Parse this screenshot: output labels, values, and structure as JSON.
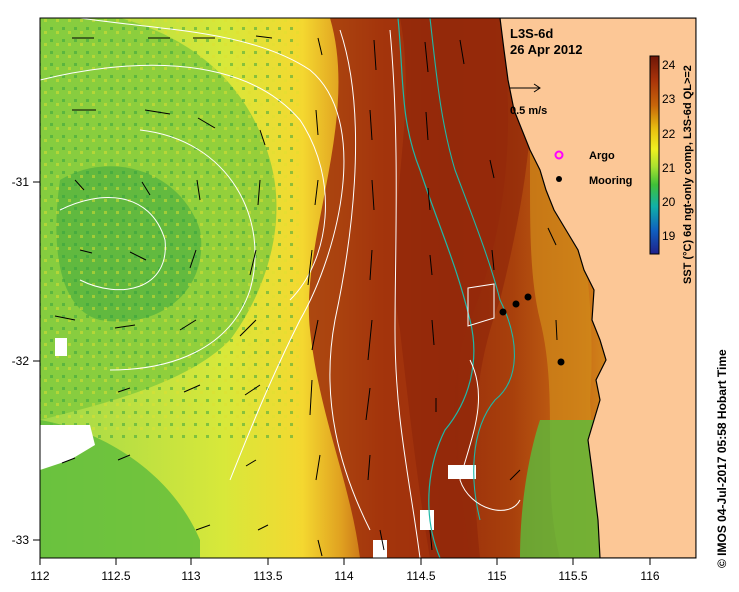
{
  "map": {
    "product": "L3S-6d",
    "date": "26 Apr 2012",
    "vector_scale_label": "0.5 m/s",
    "x_ticks": [
      "112",
      "112.5",
      "113",
      "113.5",
      "114",
      "114.5",
      "115",
      "115.5",
      "116"
    ],
    "y_ticks": [
      "-31",
      "-32",
      "-33"
    ],
    "credit": "© IMOS 04-Jul-2017 05:58 Hobart Time",
    "land_color": "#fcc796",
    "coast_color": "#000000",
    "bathy_color": "#1fb8a8",
    "contour_color": "#ffffff"
  },
  "legend": {
    "argo_label": "Argo",
    "mooring_label": "Mooring",
    "argo_color": "#ff00ff",
    "mooring_color": "#000000"
  },
  "colorbar": {
    "ticks": [
      "24",
      "23",
      "22",
      "21",
      "20",
      "19"
    ],
    "label": "SST (°C) 6d ngt-only comp, L3S-6d QL>=2",
    "colors": [
      "#7a1a0a",
      "#a8330a",
      "#c8660a",
      "#e8b010",
      "#f8f018",
      "#b8e830",
      "#40c030",
      "#10b8a0",
      "#1070c0",
      "#202090"
    ]
  }
}
